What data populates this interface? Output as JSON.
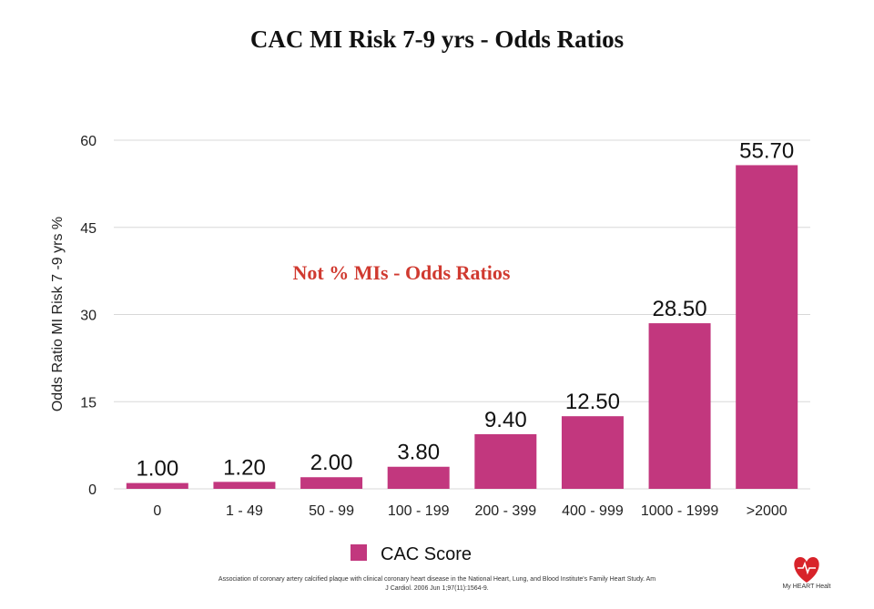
{
  "chart_data": {
    "type": "bar",
    "title": "CAC MI Risk 7-9 yrs - Odds Ratios",
    "ylabel": "Odds Ratio MI Risk 7 -9  yrs %",
    "xlabel": "",
    "annotation": "Not % MIs - Odds Ratios",
    "categories": [
      "0",
      "1 - 49",
      "50 - 99",
      "100 - 199",
      "200 - 399",
      "400 - 999",
      "1000 - 1999",
      ">2000"
    ],
    "series": [
      {
        "name": "CAC Score",
        "values": [
          1.0,
          1.2,
          2.0,
          3.8,
          9.4,
          12.5,
          28.5,
          55.7
        ],
        "labels": [
          "1.00",
          "1.20",
          "2.00",
          "3.80",
          "9.40",
          "12.50",
          "28.50",
          "55.70"
        ],
        "color": "#c2377e"
      }
    ],
    "yticks": [
      "0",
      "15",
      "30",
      "45",
      "60"
    ],
    "ytick_values": [
      0,
      15,
      30,
      45,
      60
    ],
    "ylim": [
      0,
      60
    ],
    "grid": true,
    "legend_position": "bottom"
  },
  "citation": {
    "line1": "Association of coronary artery calcified plaque with clinical coronary heart disease in the National Heart, Lung, and Blood Institute's Family Heart Study. Am",
    "line2": "J Cardiol. 2006 Jun 1;97(11):1564-9."
  },
  "logo": {
    "text": "My HEART Healt",
    "icon": "heart-icon",
    "color": "#d8232a"
  }
}
